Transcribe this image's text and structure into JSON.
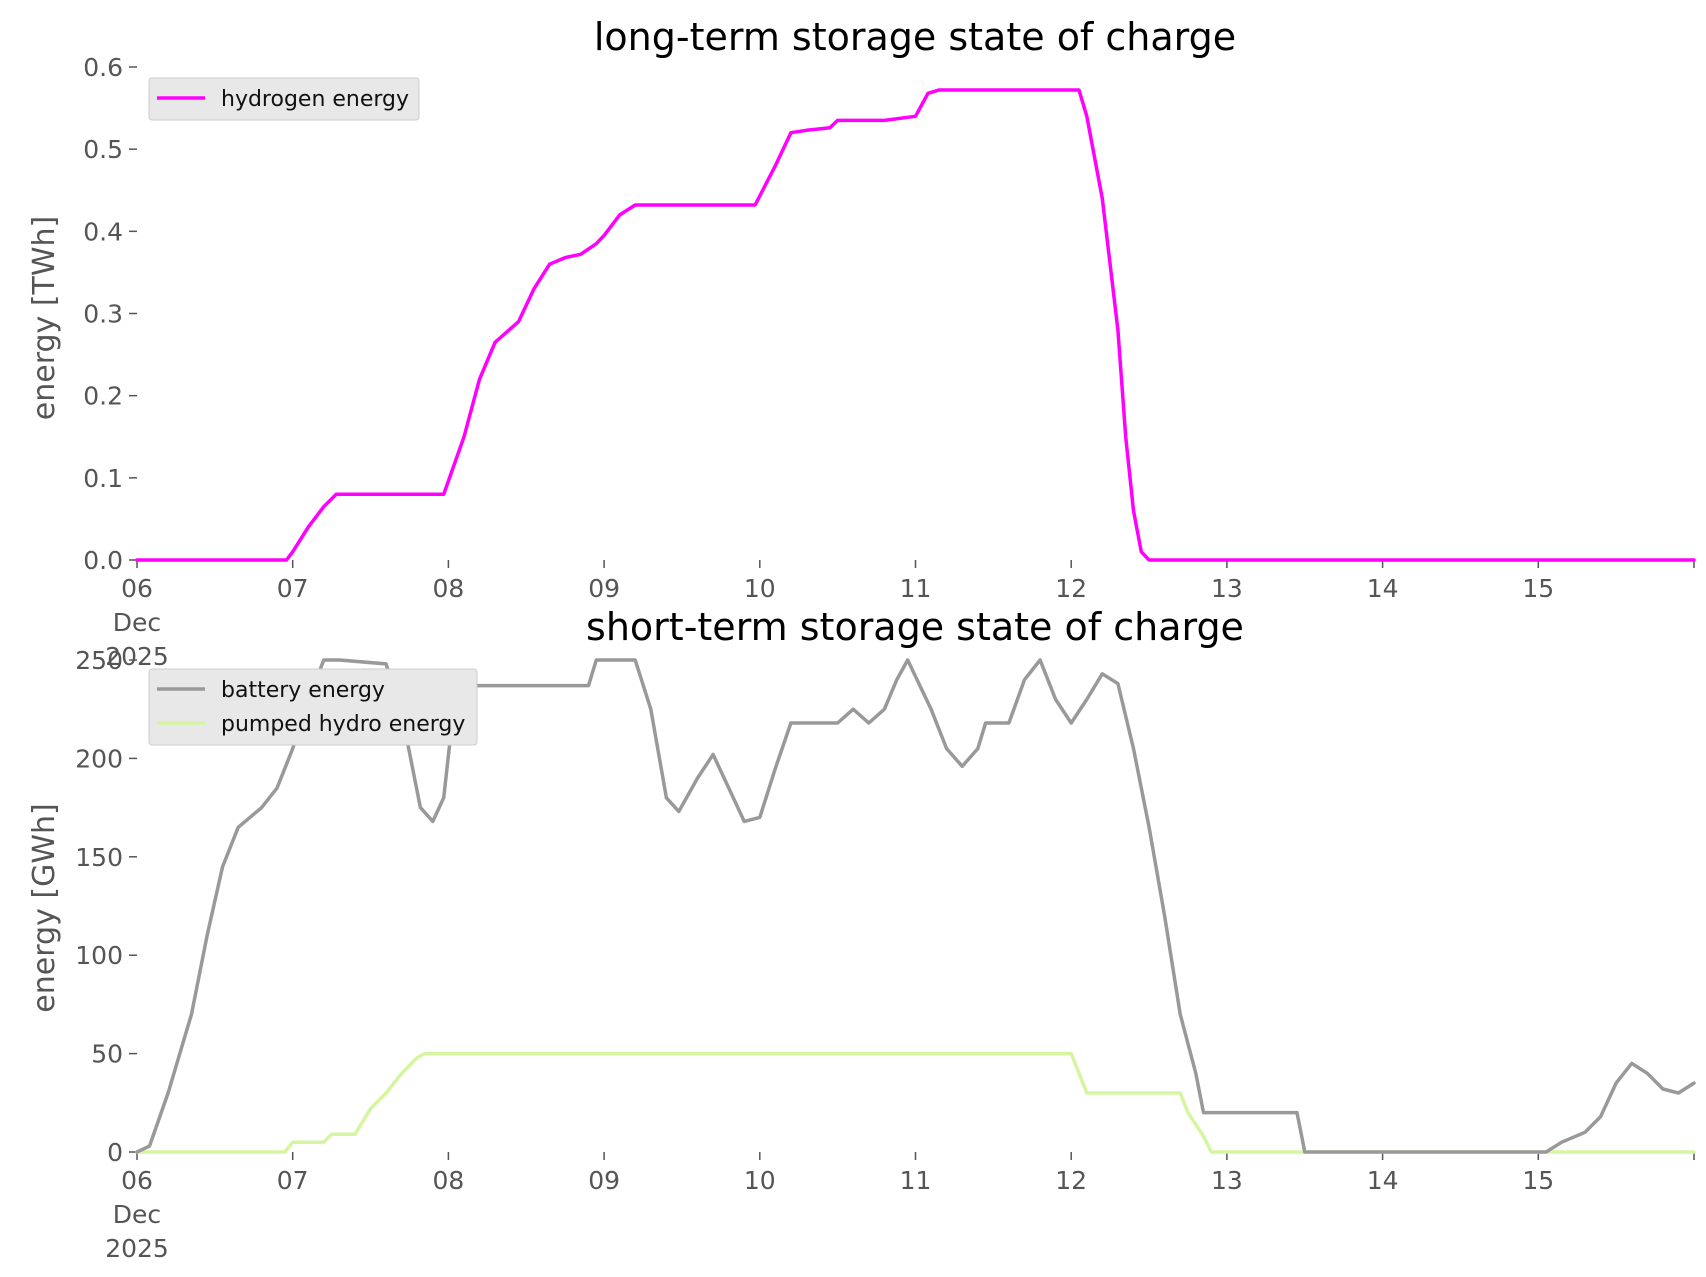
{
  "chart_data": [
    {
      "type": "line",
      "title": "long-term storage state of charge",
      "xlabel": "",
      "ylabel": "energy [TWh]",
      "x_tick_labels": [
        "06\nDec\n2025",
        "07",
        "08",
        "09",
        "10",
        "11",
        "12",
        "13",
        "14",
        "15"
      ],
      "y_tick_labels": [
        "0.0",
        "0.1",
        "0.2",
        "0.3",
        "0.4",
        "0.5",
        "0.6"
      ],
      "xlim": [
        0,
        10
      ],
      "ylim": [
        0,
        0.6
      ],
      "x_unit": "days since 2025-12-06 00:00",
      "grid": false,
      "legend_position": "top-left",
      "series": [
        {
          "name": "hydrogen energy",
          "color": "#ff00ff",
          "points": [
            [
              0,
              0
            ],
            [
              0.96,
              0
            ],
            [
              1.0,
              0.01
            ],
            [
              1.1,
              0.04
            ],
            [
              1.2,
              0.065
            ],
            [
              1.28,
              0.08
            ],
            [
              1.5,
              0.08
            ],
            [
              1.97,
              0.08
            ],
            [
              2.1,
              0.15
            ],
            [
              2.2,
              0.22
            ],
            [
              2.3,
              0.265
            ],
            [
              2.45,
              0.29
            ],
            [
              2.55,
              0.33
            ],
            [
              2.65,
              0.36
            ],
            [
              2.75,
              0.368
            ],
            [
              2.85,
              0.372
            ],
            [
              2.95,
              0.385
            ],
            [
              3.0,
              0.395
            ],
            [
              3.1,
              0.42
            ],
            [
              3.2,
              0.432
            ],
            [
              3.5,
              0.432
            ],
            [
              3.97,
              0.432
            ],
            [
              4.1,
              0.48
            ],
            [
              4.2,
              0.52
            ],
            [
              4.3,
              0.523
            ],
            [
              4.45,
              0.526
            ],
            [
              4.5,
              0.535
            ],
            [
              4.8,
              0.535
            ],
            [
              5.0,
              0.54
            ],
            [
              5.08,
              0.568
            ],
            [
              5.15,
              0.572
            ],
            [
              5.5,
              0.572
            ],
            [
              6.05,
              0.572
            ],
            [
              6.1,
              0.54
            ],
            [
              6.2,
              0.44
            ],
            [
              6.3,
              0.28
            ],
            [
              6.35,
              0.15
            ],
            [
              6.4,
              0.06
            ],
            [
              6.45,
              0.01
            ],
            [
              6.5,
              0
            ],
            [
              10,
              0
            ]
          ]
        },
        {
          "type": "line",
          "title": "short-term storage state of charge",
          "xlabel": "",
          "ylabel": "energy [GWh]",
          "x_tick_labels": [
            "06\nDec\n2025",
            "07",
            "08",
            "09",
            "10",
            "11",
            "12",
            "13",
            "14",
            "15"
          ],
          "y_tick_labels": [
            "0",
            "50",
            "100",
            "150",
            "200",
            "250"
          ],
          "xlim": [
            0,
            10
          ],
          "ylim": [
            0,
            250
          ],
          "x_unit": "days since 2025-12-06 00:00",
          "grid": false,
          "legend_position": "top-left",
          "series": [
            {
              "name": "battery energy",
              "color": "#999999",
              "points": [
                [
                  0,
                  0
                ],
                [
                  0.08,
                  3
                ],
                [
                  0.2,
                  30
                ],
                [
                  0.35,
                  70
                ],
                [
                  0.45,
                  110
                ],
                [
                  0.55,
                  145
                ],
                [
                  0.65,
                  165
                ],
                [
                  0.8,
                  175
                ],
                [
                  0.9,
                  185
                ],
                [
                  1.0,
                  205
                ],
                [
                  1.1,
                  230
                ],
                [
                  1.2,
                  250
                ],
                [
                  1.3,
                  250
                ],
                [
                  1.6,
                  248
                ],
                [
                  1.72,
                  215
                ],
                [
                  1.82,
                  175
                ],
                [
                  1.9,
                  168
                ],
                [
                  1.97,
                  180
                ],
                [
                  2.05,
                  237
                ],
                [
                  2.5,
                  237
                ],
                [
                  2.9,
                  237
                ],
                [
                  2.95,
                  250
                ],
                [
                  3.2,
                  250
                ],
                [
                  3.3,
                  225
                ],
                [
                  3.4,
                  180
                ],
                [
                  3.48,
                  173
                ],
                [
                  3.6,
                  190
                ],
                [
                  3.7,
                  202
                ],
                [
                  3.8,
                  185
                ],
                [
                  3.9,
                  168
                ],
                [
                  4.0,
                  170
                ],
                [
                  4.1,
                  195
                ],
                [
                  4.2,
                  218
                ],
                [
                  4.5,
                  218
                ],
                [
                  4.6,
                  225
                ],
                [
                  4.7,
                  218
                ],
                [
                  4.8,
                  225
                ],
                [
                  4.88,
                  240
                ],
                [
                  4.95,
                  250
                ],
                [
                  5.1,
                  225
                ],
                [
                  5.2,
                  205
                ],
                [
                  5.3,
                  196
                ],
                [
                  5.4,
                  205
                ],
                [
                  5.45,
                  218
                ],
                [
                  5.6,
                  218
                ],
                [
                  5.7,
                  240
                ],
                [
                  5.8,
                  250
                ],
                [
                  5.9,
                  230
                ],
                [
                  6.0,
                  218
                ],
                [
                  6.1,
                  230
                ],
                [
                  6.2,
                  243
                ],
                [
                  6.3,
                  238
                ],
                [
                  6.4,
                  205
                ],
                [
                  6.5,
                  165
                ],
                [
                  6.6,
                  120
                ],
                [
                  6.7,
                  70
                ],
                [
                  6.8,
                  40
                ],
                [
                  6.85,
                  20
                ],
                [
                  7.0,
                  20
                ],
                [
                  7.2,
                  20
                ],
                [
                  7.45,
                  20
                ],
                [
                  7.5,
                  0
                ],
                [
                  7.8,
                  0
                ],
                [
                  8.9,
                  0
                ],
                [
                  9.05,
                  0
                ],
                [
                  9.15,
                  5
                ],
                [
                  9.3,
                  10
                ],
                [
                  9.4,
                  18
                ],
                [
                  9.5,
                  35
                ],
                [
                  9.6,
                  45
                ],
                [
                  9.7,
                  40
                ],
                [
                  9.8,
                  32
                ],
                [
                  9.9,
                  30
                ],
                [
                  10.0,
                  35
                ]
              ]
            },
            {
              "name": "pumped hydro energy",
              "color": "#d6f5a0",
              "points": [
                [
                  0,
                  0
                ],
                [
                  0.95,
                  0
                ],
                [
                  1.0,
                  5
                ],
                [
                  1.1,
                  5
                ],
                [
                  1.2,
                  5
                ],
                [
                  1.25,
                  9
                ],
                [
                  1.4,
                  9
                ],
                [
                  1.5,
                  22
                ],
                [
                  1.6,
                  30
                ],
                [
                  1.7,
                  40
                ],
                [
                  1.8,
                  48
                ],
                [
                  1.85,
                  50
                ],
                [
                  2.0,
                  50
                ],
                [
                  4.0,
                  50
                ],
                [
                  5.8,
                  50
                ],
                [
                  6.0,
                  50
                ],
                [
                  6.1,
                  30
                ],
                [
                  6.3,
                  30
                ],
                [
                  6.7,
                  30
                ],
                [
                  6.75,
                  20
                ],
                [
                  6.85,
                  8
                ],
                [
                  6.9,
                  0
                ],
                [
                  10,
                  0
                ]
              ]
            }
          ]
        }
      ]
    }
  ]
}
